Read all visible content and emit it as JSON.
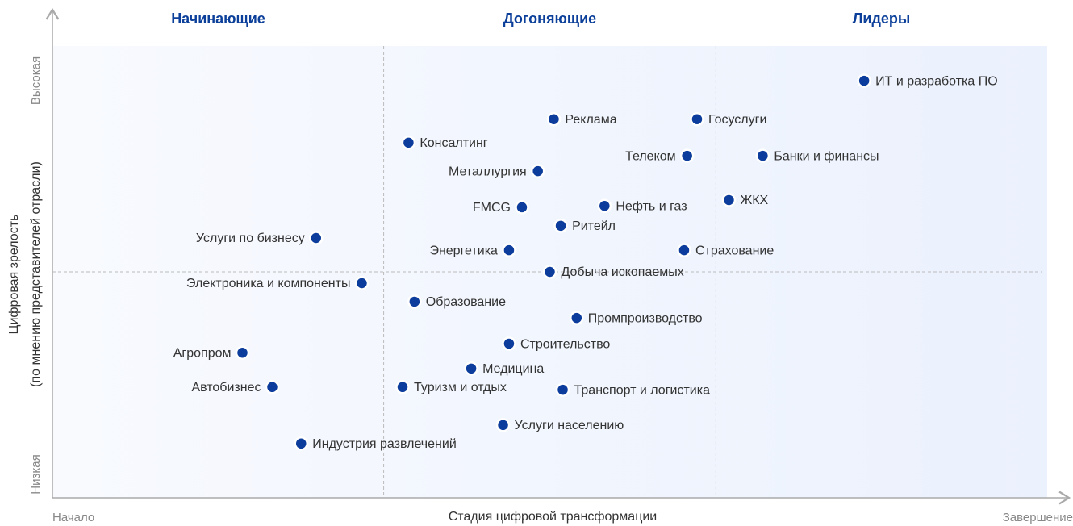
{
  "chart_data": {
    "type": "scatter",
    "xlabel": "Стадия цифровой трансформации",
    "ylabel": [
      "Цифровая зрелость",
      "(по мнению представителей отрасли)"
    ],
    "x_start_label": "Начало",
    "x_end_label": "Завершение",
    "y_start_label": "Низкая",
    "y_end_label": "Высокая",
    "quadrant_labels": [
      "Начинающие",
      "Догоняющие",
      "Лидеры"
    ],
    "xdividers": [
      33.3,
      66.7
    ],
    "ydivider": 50,
    "xlim": [
      0,
      100
    ],
    "ylim": [
      0,
      100
    ],
    "color": "#0d3d9c",
    "labels": [
      "ИТ и разработка ПО",
      "Реклама",
      "Госуслуги",
      "Консалтинг",
      "Телеком",
      "Банки и финансы",
      "Металлургия",
      "ЖКХ",
      "FMCG",
      "Нефть и газ",
      "Ритейл",
      "Услуги по бизнесу",
      "Энергетика",
      "Страхование",
      "Добыча ископаемых",
      "Электроника и компоненты",
      "Образование",
      "Промпроизводство",
      "Строительство",
      "Агропром",
      "Медицина",
      "Автобизнес",
      "Туризм и отдых",
      "Транспорт и логистика",
      "Услуги населению",
      "Индустрия развлечений"
    ],
    "x": [
      81.6,
      50.4,
      64.8,
      35.8,
      63.8,
      71.4,
      48.8,
      68.0,
      47.2,
      55.5,
      51.1,
      26.5,
      45.9,
      63.5,
      50.0,
      31.1,
      36.4,
      52.7,
      45.9,
      19.1,
      42.1,
      22.1,
      35.2,
      51.3,
      45.3,
      25.0
    ],
    "values": [
      92.3,
      83.8,
      83.8,
      78.6,
      75.7,
      75.7,
      72.3,
      65.9,
      64.3,
      64.6,
      60.2,
      57.5,
      54.8,
      54.8,
      50.0,
      47.5,
      43.4,
      39.8,
      34.1,
      32.1,
      28.6,
      24.5,
      24.5,
      23.9,
      16.1,
      12.0
    ]
  }
}
